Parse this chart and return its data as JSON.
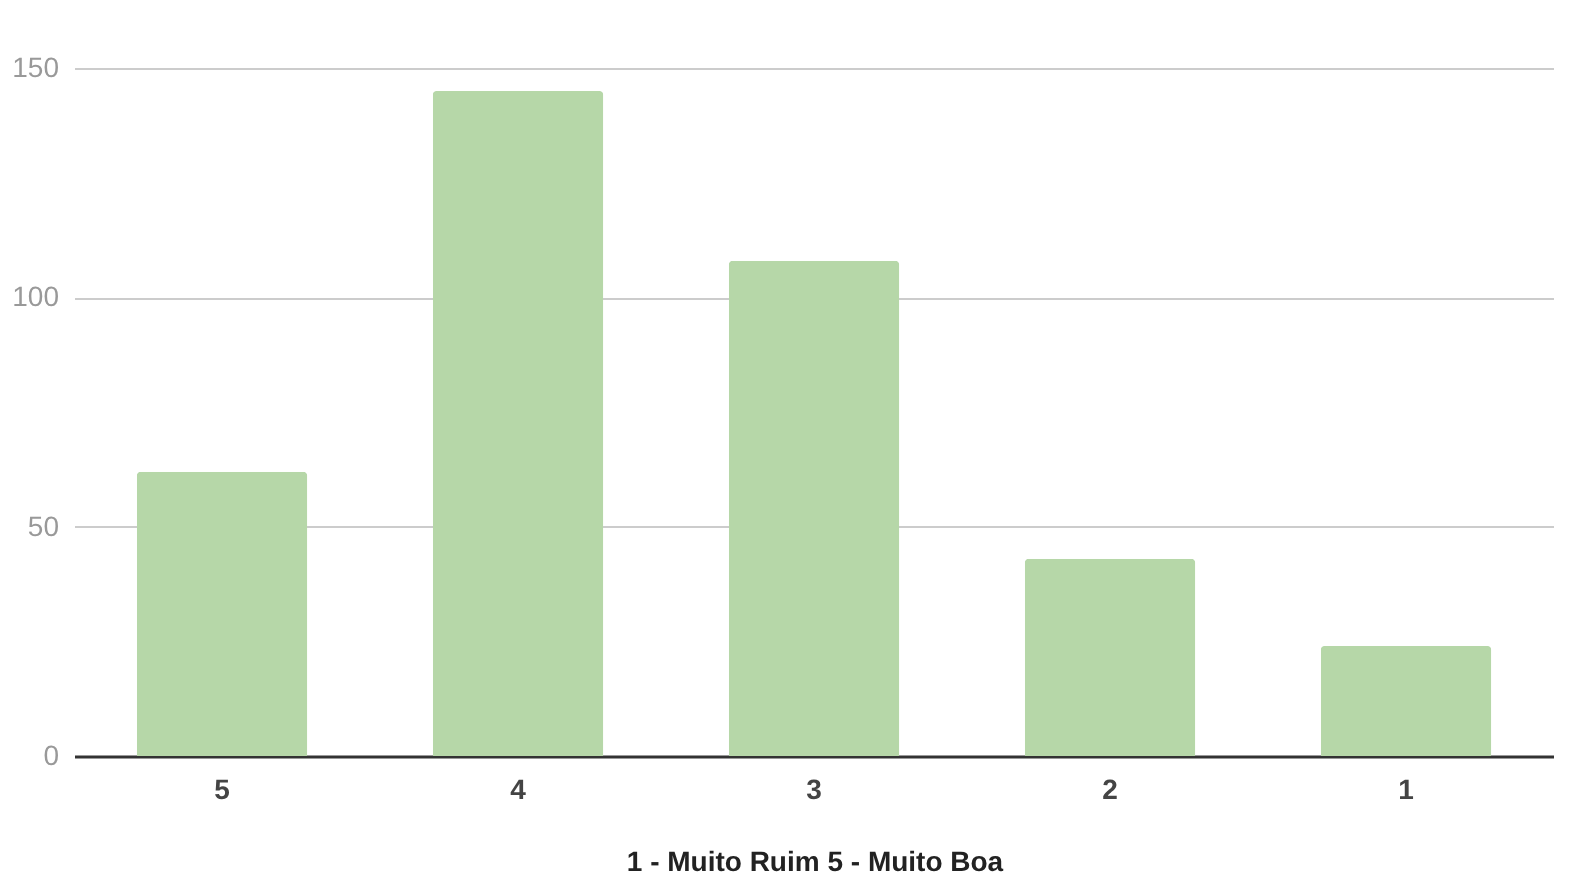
{
  "chart_data": {
    "type": "bar",
    "xlabel": "1 - Muito Ruim 5 - Muito Boa",
    "categories": [
      "5",
      "4",
      "3",
      "2",
      "1"
    ],
    "values": [
      62,
      145,
      108,
      43,
      24
    ],
    "color": "#b6d7a8",
    "ylim": [
      0,
      150
    ],
    "yticks": [
      0,
      50,
      100,
      150
    ],
    "grid": "y"
  }
}
